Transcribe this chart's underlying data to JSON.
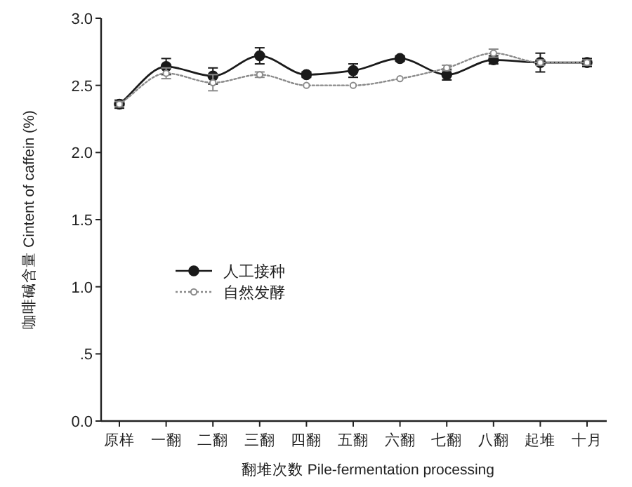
{
  "chart_data": {
    "type": "line",
    "categories": [
      "原样",
      "一翻",
      "二翻",
      "三翻",
      "四翻",
      "五翻",
      "六翻",
      "七翻",
      "八翻",
      "起堆",
      "十月"
    ],
    "series": [
      {
        "name": "人工接种",
        "color": "#1a1a1a",
        "line_style": "solid",
        "values": [
          2.36,
          2.64,
          2.57,
          2.72,
          2.58,
          2.61,
          2.7,
          2.58,
          2.69,
          2.67,
          2.67
        ],
        "errors": [
          0.03,
          0.06,
          0.06,
          0.06,
          0.02,
          0.05,
          0.02,
          0.04,
          0.03,
          0.07,
          0.03
        ]
      },
      {
        "name": "自然发酵",
        "color": "#8a8a8a",
        "line_style": "dotted",
        "values": [
          2.36,
          2.59,
          2.52,
          2.58,
          2.5,
          2.5,
          2.55,
          2.63,
          2.74,
          2.67,
          2.67
        ],
        "errors": [
          0.02,
          0.04,
          0.06,
          0.02,
          null,
          null,
          null,
          0.02,
          0.03,
          0.02,
          0.02
        ]
      }
    ],
    "marker": "circle",
    "ylim": [
      0,
      3.0
    ],
    "yticks": [
      {
        "value": 0,
        "label": "0.0"
      },
      {
        "value": 0.5,
        "label": ".5"
      },
      {
        "value": 1.0,
        "label": "1.0"
      },
      {
        "value": 1.5,
        "label": "1.5"
      },
      {
        "value": 2.0,
        "label": "2.0"
      },
      {
        "value": 2.5,
        "label": "2.5"
      },
      {
        "value": 3.0,
        "label": "3.0"
      }
    ],
    "xlabel": "翻堆次数 Pile-fermentation processing",
    "ylabel": "咖啡碱含量 Cintent of caffein (%)",
    "legend": "center left"
  }
}
